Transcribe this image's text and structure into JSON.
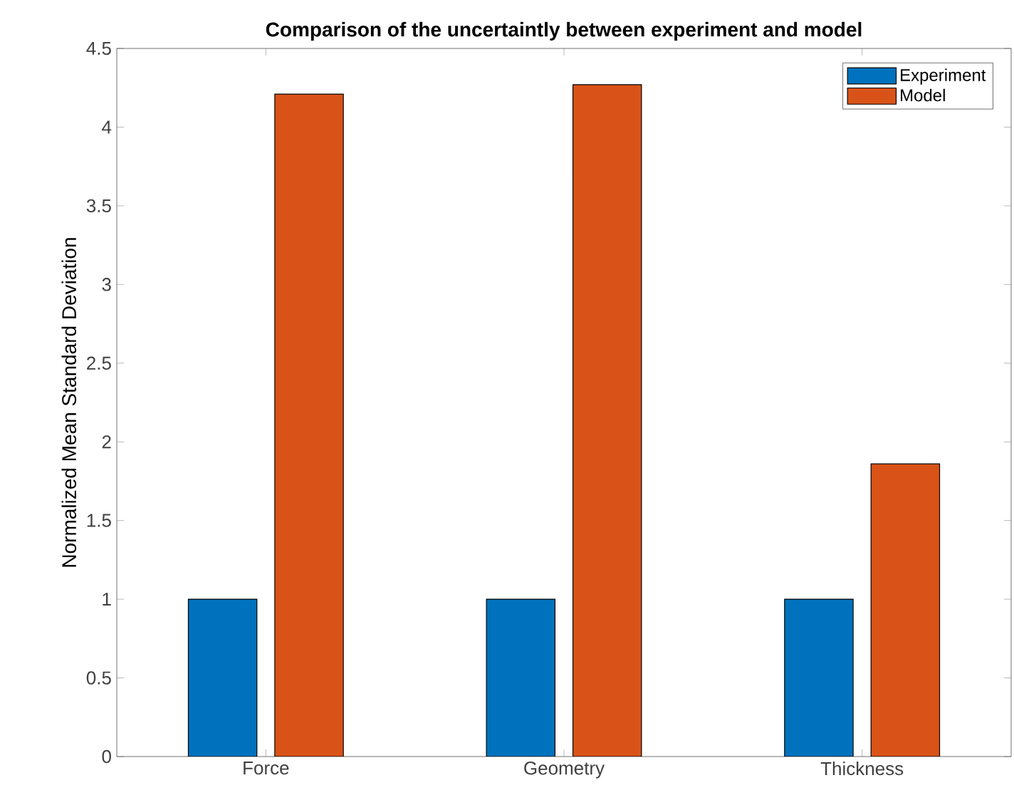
{
  "chart_data": {
    "type": "bar",
    "title": "Comparison of the uncertaintly between experiment and model",
    "ylabel": "Normalized Mean Standard Deviation",
    "categories": [
      "Force",
      "Geometry",
      "Thickness"
    ],
    "series": [
      {
        "name": "Experiment",
        "color": "#0072bd",
        "values": [
          1,
          1,
          1
        ]
      },
      {
        "name": "Model",
        "color": "#d95319",
        "values": [
          4.21,
          4.27,
          1.86
        ]
      }
    ],
    "ylim": [
      0,
      4.5
    ],
    "yticks": [
      0,
      0.5,
      1,
      1.5,
      2,
      2.5,
      3,
      3.5,
      4,
      4.5
    ],
    "grid": false,
    "legend": "top right"
  }
}
